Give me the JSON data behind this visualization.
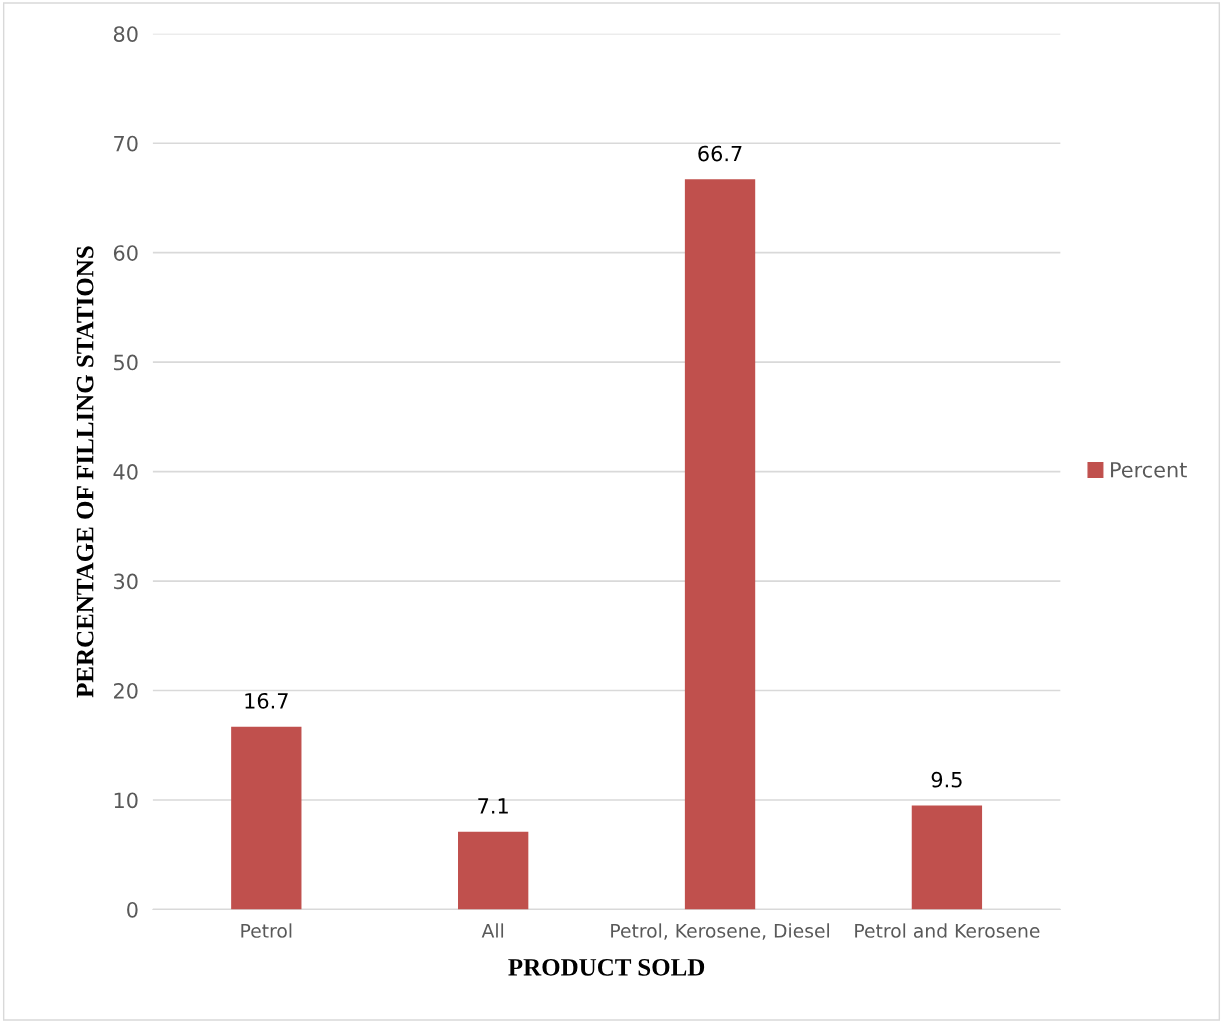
{
  "chart_data": {
    "type": "bar",
    "xlabel": "PRODUCT SOLD",
    "ylabel": "PERCENTAGE OF FILLING STATIONS",
    "categories": [
      "Petrol",
      "All",
      "Petrol, Kerosene, Diesel",
      "Petrol and Kerosene"
    ],
    "series": [
      {
        "name": "Percent",
        "color": "#c0504d",
        "values": [
          16.7,
          7.1,
          66.7,
          9.5
        ]
      }
    ],
    "ylim": [
      0,
      80
    ],
    "yticks": [
      0,
      10,
      20,
      30,
      40,
      50,
      60,
      70,
      80
    ],
    "grid": "y",
    "legend": "right",
    "data_labels": true
  }
}
